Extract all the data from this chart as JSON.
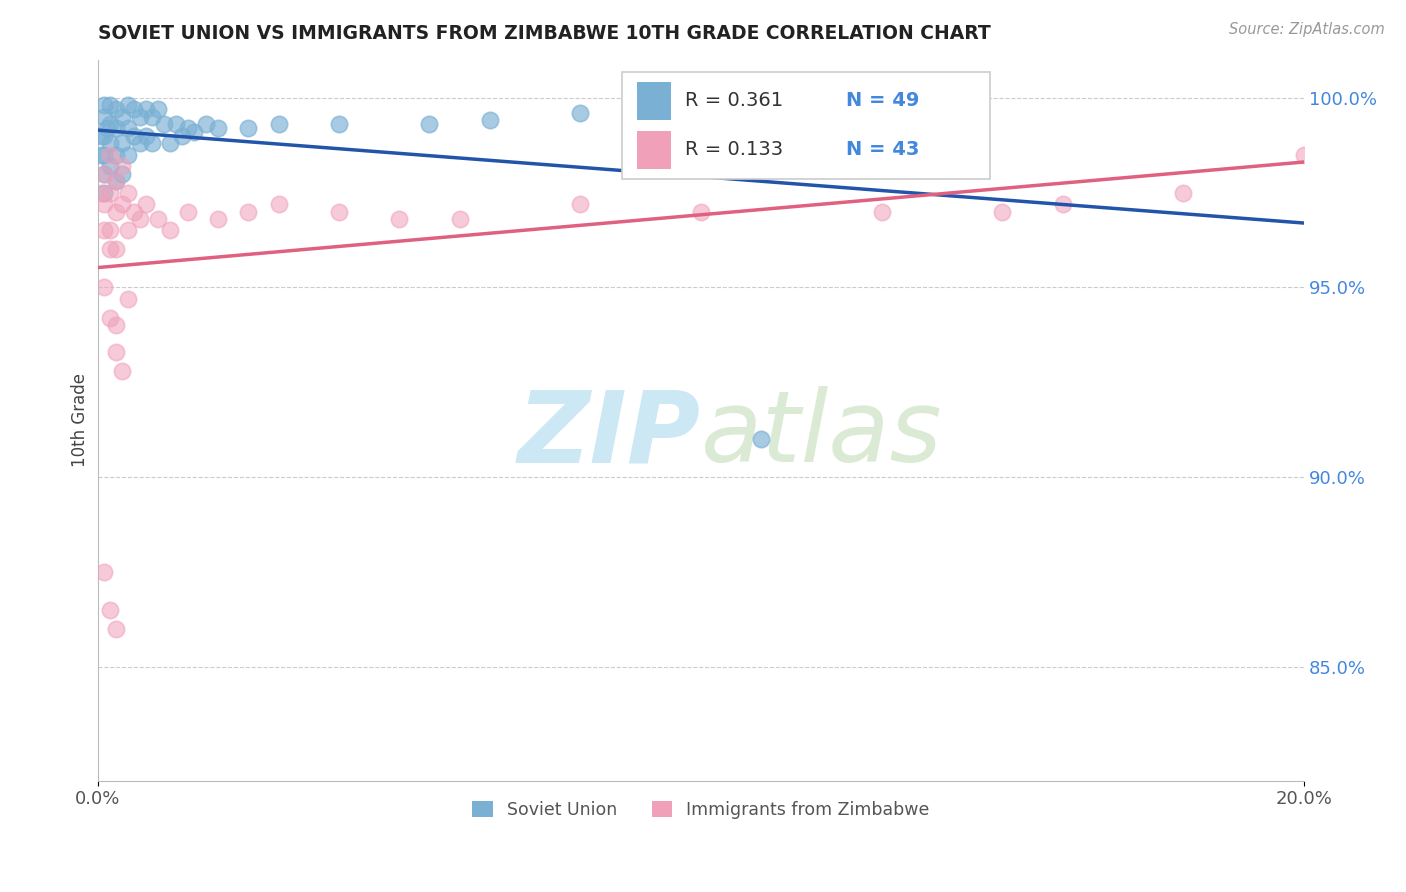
{
  "title": "SOVIET UNION VS IMMIGRANTS FROM ZIMBABWE 10TH GRADE CORRELATION CHART",
  "source_text": "Source: ZipAtlas.com",
  "ylabel": "10th Grade",
  "ylabel_right_ticks": [
    "100.0%",
    "95.0%",
    "90.0%",
    "85.0%"
  ],
  "ylabel_right_vals": [
    1.0,
    0.95,
    0.9,
    0.85
  ],
  "blue_color": "#7ab0d4",
  "pink_color": "#f0a0b8",
  "blue_line_color": "#2255aa",
  "pink_line_color": "#e06080",
  "background_color": "#ffffff",
  "watermark_color": "#cce8f4",
  "legend_r1": "0.361",
  "legend_n1": "49",
  "legend_r2": "0.133",
  "legend_n2": "43",
  "legend_color_text": "#333333",
  "legend_color_n": "#4488dd",
  "su_label": "Soviet Union",
  "zim_label": "Immigrants from Zimbabwe",
  "xmin": 0.0,
  "xmax": 0.2,
  "ymin": 0.82,
  "ymax": 1.01,
  "soviet_union_x": [
    0.0005,
    0.0005,
    0.001,
    0.001,
    0.001,
    0.001,
    0.001,
    0.001,
    0.0015,
    0.002,
    0.002,
    0.002,
    0.002,
    0.003,
    0.003,
    0.003,
    0.003,
    0.004,
    0.004,
    0.004,
    0.005,
    0.005,
    0.005,
    0.006,
    0.006,
    0.007,
    0.007,
    0.008,
    0.008,
    0.009,
    0.009,
    0.01,
    0.011,
    0.012,
    0.013,
    0.014,
    0.015,
    0.016,
    0.018,
    0.02,
    0.025,
    0.03,
    0.04,
    0.055,
    0.065,
    0.08,
    0.095,
    0.11,
    0.13
  ],
  "soviet_union_y": [
    0.99,
    0.985,
    0.998,
    0.995,
    0.99,
    0.985,
    0.98,
    0.975,
    0.992,
    0.998,
    0.993,
    0.988,
    0.982,
    0.997,
    0.992,
    0.985,
    0.978,
    0.995,
    0.988,
    0.98,
    0.998,
    0.992,
    0.985,
    0.997,
    0.99,
    0.995,
    0.988,
    0.997,
    0.99,
    0.995,
    0.988,
    0.997,
    0.993,
    0.988,
    0.993,
    0.99,
    0.992,
    0.991,
    0.993,
    0.992,
    0.992,
    0.993,
    0.993,
    0.993,
    0.994,
    0.996,
    0.995,
    0.91,
    0.998
  ],
  "zimbabwe_x": [
    0.0005,
    0.001,
    0.001,
    0.001,
    0.002,
    0.002,
    0.002,
    0.003,
    0.003,
    0.003,
    0.004,
    0.004,
    0.005,
    0.005,
    0.006,
    0.007,
    0.008,
    0.01,
    0.012,
    0.015,
    0.02,
    0.025,
    0.03,
    0.04,
    0.05,
    0.06,
    0.08,
    0.1,
    0.13,
    0.15,
    0.16,
    0.18,
    0.2,
    0.001,
    0.002,
    0.003,
    0.003,
    0.004,
    0.005,
    0.002,
    0.001,
    0.002,
    0.003
  ],
  "zimbabwe_y": [
    0.975,
    0.98,
    0.972,
    0.965,
    0.985,
    0.975,
    0.965,
    0.978,
    0.97,
    0.96,
    0.982,
    0.972,
    0.975,
    0.965,
    0.97,
    0.968,
    0.972,
    0.968,
    0.965,
    0.97,
    0.968,
    0.97,
    0.972,
    0.97,
    0.968,
    0.968,
    0.972,
    0.97,
    0.97,
    0.97,
    0.972,
    0.975,
    0.985,
    0.95,
    0.942,
    0.94,
    0.933,
    0.928,
    0.947,
    0.96,
    0.875,
    0.865,
    0.86
  ]
}
